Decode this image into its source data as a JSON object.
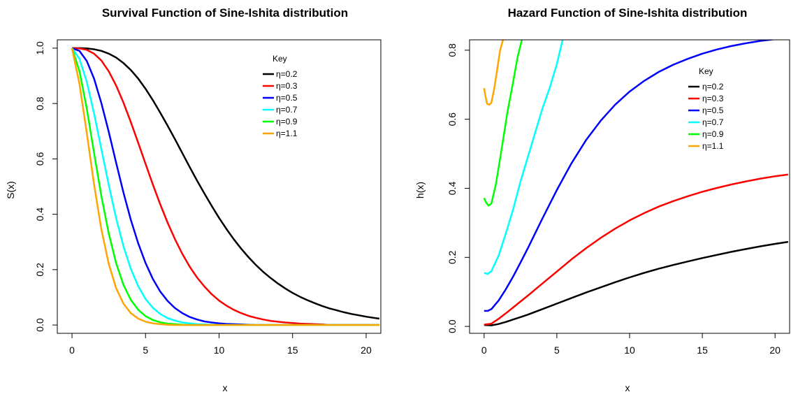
{
  "chart_data": [
    {
      "type": "line",
      "title": "Survival Function of Sine-Ishita distribution",
      "xlabel": "x",
      "ylabel": "S(x)",
      "xlim": [
        -1,
        21
      ],
      "ylim": [
        -0.03,
        1.03
      ],
      "x_ticks": [
        0,
        5,
        10,
        15,
        20
      ],
      "x_tick_labels": [
        "0",
        "5",
        "10",
        "15",
        "20"
      ],
      "y_ticks": [
        0.0,
        0.2,
        0.4,
        0.6,
        0.8,
        1.0
      ],
      "y_tick_labels": [
        "0.0",
        "0.2",
        "0.4",
        "0.6",
        "0.8",
        "1.0"
      ],
      "grid": false,
      "legend": {
        "title": "Key",
        "position": "top-right"
      },
      "x": [
        0,
        0.5,
        1,
        1.5,
        2,
        2.5,
        3,
        3.5,
        4,
        4.5,
        5,
        5.5,
        6,
        6.5,
        7,
        7.5,
        8,
        8.5,
        9,
        9.5,
        10,
        10.5,
        11,
        11.5,
        12,
        12.5,
        13,
        13.5,
        14,
        14.5,
        15,
        15.5,
        16,
        16.5,
        17,
        17.5,
        18,
        18.5,
        19,
        19.5,
        20,
        20.5,
        20.9
      ],
      "series": [
        {
          "name": "η=0.2",
          "color": "#000000",
          "values": [
            1.0,
            1.0,
            0.999,
            0.996,
            0.99,
            0.98,
            0.966,
            0.946,
            0.921,
            0.89,
            0.853,
            0.812,
            0.767,
            0.72,
            0.671,
            0.621,
            0.571,
            0.522,
            0.475,
            0.43,
            0.387,
            0.347,
            0.31,
            0.276,
            0.245,
            0.217,
            0.192,
            0.17,
            0.15,
            0.132,
            0.116,
            0.102,
            0.09,
            0.079,
            0.069,
            0.06,
            0.053,
            0.046,
            0.04,
            0.035,
            0.03,
            0.026,
            0.023
          ]
        },
        {
          "name": "η=0.3",
          "color": "#ff0000",
          "values": [
            1.0,
            0.999,
            0.994,
            0.98,
            0.955,
            0.916,
            0.865,
            0.803,
            0.733,
            0.658,
            0.582,
            0.507,
            0.436,
            0.37,
            0.31,
            0.257,
            0.211,
            0.172,
            0.139,
            0.111,
            0.088,
            0.07,
            0.055,
            0.043,
            0.033,
            0.026,
            0.02,
            0.015,
            0.012,
            0.009,
            0.007,
            0.005,
            0.004,
            0.003,
            0.002,
            0.0,
            0.0,
            0.0,
            0.0,
            0.0,
            0.0,
            0.0,
            0.0
          ]
        },
        {
          "name": "η=0.5",
          "color": "#0000ff",
          "values": [
            1.0,
            0.99,
            0.954,
            0.89,
            0.801,
            0.697,
            0.586,
            0.478,
            0.38,
            0.295,
            0.224,
            0.166,
            0.121,
            0.087,
            0.061,
            0.043,
            0.029,
            0.02,
            0.013,
            0.009,
            0.006,
            0.004,
            0.003,
            0.002,
            0.001,
            0.0,
            0.0,
            0.0,
            0.0,
            0.0,
            0.0,
            0.0,
            0.0,
            0.0,
            0.0,
            0.0,
            0.0,
            0.0,
            0.0,
            0.0,
            0.0,
            0.0,
            0.0
          ]
        },
        {
          "name": "η=0.7",
          "color": "#00ffff",
          "values": [
            1.0,
            0.962,
            0.879,
            0.764,
            0.635,
            0.505,
            0.386,
            0.284,
            0.203,
            0.14,
            0.094,
            0.062,
            0.04,
            0.025,
            0.016,
            0.009,
            0.006,
            0.003,
            0.002,
            0.001,
            0.0,
            0.0,
            0.0,
            0.0,
            0.0,
            0.0,
            0.0,
            0.0,
            0.0,
            0.0,
            0.0,
            0.0,
            0.0,
            0.0,
            0.0,
            0.0,
            0.0,
            0.0,
            0.0,
            0.0,
            0.0,
            0.0,
            0.0
          ]
        },
        {
          "name": "η=0.9",
          "color": "#00ff00",
          "values": [
            1.0,
            0.918,
            0.783,
            0.622,
            0.465,
            0.33,
            0.223,
            0.145,
            0.091,
            0.055,
            0.032,
            0.018,
            0.01,
            0.005,
            0.003,
            0.001,
            0.0,
            0.0,
            0.0,
            0.0,
            0.0,
            0.0,
            0.0,
            0.0,
            0.0,
            0.0,
            0.0,
            0.0,
            0.0,
            0.0,
            0.0,
            0.0,
            0.0,
            0.0,
            0.0,
            0.0,
            0.0,
            0.0,
            0.0,
            0.0,
            0.0,
            0.0,
            0.0
          ]
        },
        {
          "name": "η=1.1",
          "color": "#ffa500",
          "values": [
            1.0,
            0.873,
            0.695,
            0.508,
            0.345,
            0.22,
            0.133,
            0.077,
            0.043,
            0.023,
            0.012,
            0.006,
            0.003,
            0.001,
            0.0,
            0.0,
            0.0,
            0.0,
            0.0,
            0.0,
            0.0,
            0.0,
            0.0,
            0.0,
            0.0,
            0.0,
            0.0,
            0.0,
            0.0,
            0.0,
            0.0,
            0.0,
            0.0,
            0.0,
            0.0,
            0.0,
            0.0,
            0.0,
            0.0,
            0.0,
            0.0,
            0.0,
            0.0
          ]
        }
      ]
    },
    {
      "type": "line",
      "title": "Hazard Function of Sine-Ishita distribution",
      "xlabel": "x",
      "ylabel": "h(x)",
      "xlim": [
        -1,
        21
      ],
      "ylim": [
        -0.02,
        0.83
      ],
      "x_ticks": [
        0,
        5,
        10,
        15,
        20
      ],
      "x_tick_labels": [
        "0",
        "5",
        "10",
        "15",
        "20"
      ],
      "y_ticks": [
        0.0,
        0.2,
        0.4,
        0.6,
        0.8
      ],
      "y_tick_labels": [
        "0.0",
        "0.2",
        "0.4",
        "0.6",
        "0.8"
      ],
      "grid": false,
      "legend": {
        "title": "Key",
        "position": "top-right"
      },
      "series": [
        {
          "name": "η=0.2",
          "color": "#000000",
          "x": [
            0,
            0.5,
            1,
            1.5,
            2,
            2.5,
            3,
            4,
            5,
            6,
            7,
            8,
            9,
            10,
            11,
            12,
            13,
            14,
            15,
            16,
            17,
            18,
            19,
            20,
            20.9
          ],
          "values": [
            0.004,
            0.003,
            0.007,
            0.013,
            0.02,
            0.027,
            0.034,
            0.05,
            0.066,
            0.082,
            0.098,
            0.113,
            0.128,
            0.142,
            0.155,
            0.167,
            0.178,
            0.188,
            0.198,
            0.207,
            0.216,
            0.224,
            0.232,
            0.239,
            0.245
          ]
        },
        {
          "name": "η=0.3",
          "color": "#ff0000",
          "x": [
            0,
            0.5,
            1,
            1.5,
            2,
            2.5,
            3,
            4,
            5,
            6,
            7,
            8,
            9,
            10,
            11,
            12,
            13,
            14,
            15,
            16,
            17,
            18,
            19,
            20,
            20.9
          ],
          "values": [
            0.005,
            0.008,
            0.022,
            0.038,
            0.055,
            0.072,
            0.089,
            0.124,
            0.159,
            0.194,
            0.226,
            0.256,
            0.283,
            0.307,
            0.328,
            0.347,
            0.363,
            0.377,
            0.39,
            0.401,
            0.411,
            0.42,
            0.428,
            0.435,
            0.44
          ]
        },
        {
          "name": "η=0.5",
          "color": "#0000ff",
          "x": [
            0,
            0.25,
            0.5,
            1,
            1.5,
            2,
            2.5,
            3,
            4,
            5,
            6,
            7,
            8,
            9,
            10,
            11,
            12,
            13,
            14,
            15,
            16,
            17,
            18,
            19,
            20,
            20.9
          ],
          "values": [
            0.045,
            0.045,
            0.05,
            0.075,
            0.108,
            0.145,
            0.185,
            0.226,
            0.312,
            0.395,
            0.472,
            0.539,
            0.595,
            0.642,
            0.68,
            0.711,
            0.737,
            0.758,
            0.775,
            0.79,
            0.802,
            0.812,
            0.82,
            0.827,
            0.832,
            0.836
          ]
        },
        {
          "name": "η=0.7",
          "color": "#00ffff",
          "x": [
            0,
            0.25,
            0.5,
            1,
            1.5,
            2,
            2.5,
            3,
            3.5,
            4,
            4.5,
            5,
            5.4
          ],
          "values": [
            0.155,
            0.152,
            0.16,
            0.205,
            0.27,
            0.34,
            0.42,
            0.49,
            0.56,
            0.63,
            0.69,
            0.76,
            0.83
          ]
        },
        {
          "name": "η=0.9",
          "color": "#00ff00",
          "x": [
            0,
            0.15,
            0.3,
            0.5,
            0.8,
            1,
            1.3,
            1.6,
            2,
            2.3,
            2.6
          ],
          "values": [
            0.372,
            0.358,
            0.35,
            0.356,
            0.41,
            0.46,
            0.54,
            0.62,
            0.71,
            0.78,
            0.83
          ]
        },
        {
          "name": "η=1.1",
          "color": "#ffa500",
          "x": [
            0,
            0.1,
            0.2,
            0.35,
            0.5,
            0.7,
            0.9,
            1.1,
            1.3
          ],
          "values": [
            0.69,
            0.665,
            0.645,
            0.642,
            0.648,
            0.69,
            0.745,
            0.8,
            0.83
          ]
        }
      ]
    }
  ]
}
